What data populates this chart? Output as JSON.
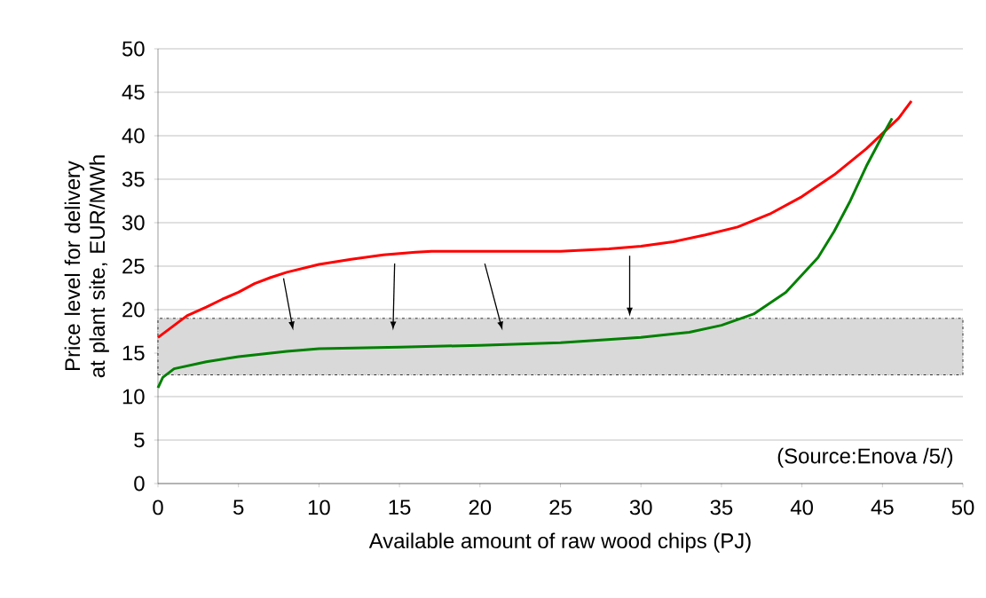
{
  "chart_data": {
    "type": "line",
    "xlabel": "Available amount of raw wood chips (PJ)",
    "ylabel": "Price level for delivery at plant site, EUR/MWh",
    "series": [
      {
        "color": "#ff0000",
        "x": [
          0,
          1.8,
          3,
          4,
          5,
          6,
          7,
          8,
          10,
          12,
          14,
          16,
          17,
          20,
          25,
          28,
          30,
          32,
          34,
          36,
          38,
          40,
          42,
          44,
          46,
          46.8
        ],
        "values": [
          16.8,
          19.3,
          20.3,
          21.2,
          22,
          23,
          23.7,
          24.3,
          25.2,
          25.8,
          26.3,
          26.6,
          26.7,
          26.7,
          26.7,
          27,
          27.3,
          27.8,
          28.6,
          29.5,
          31,
          33,
          35.5,
          38.5,
          42,
          44
        ]
      },
      {
        "color": "#008000",
        "x": [
          0,
          0.3,
          1,
          3,
          5,
          8,
          10,
          15,
          20,
          25,
          30,
          33,
          35,
          37,
          39,
          41,
          42,
          43,
          44,
          45,
          45.6
        ],
        "values": [
          11,
          12.2,
          13.2,
          14,
          14.6,
          15.2,
          15.5,
          15.7,
          15.9,
          16.2,
          16.8,
          17.4,
          18.2,
          19.5,
          22,
          26,
          29,
          32.5,
          36.5,
          40,
          42
        ]
      }
    ],
    "xlim": [
      0,
      50
    ],
    "ylim": [
      0,
      50
    ],
    "xticks": [
      0,
      5,
      10,
      15,
      20,
      25,
      30,
      35,
      40,
      45,
      50
    ],
    "yticks": [
      0,
      5,
      10,
      15,
      20,
      25,
      30,
      35,
      40,
      45,
      50
    ],
    "grid": "y",
    "bands": [
      {
        "axis": "y",
        "from": 12.5,
        "to": 19,
        "color": "#d9d9d9"
      }
    ],
    "annotations": [
      "(Source:Enova /5/)"
    ]
  }
}
